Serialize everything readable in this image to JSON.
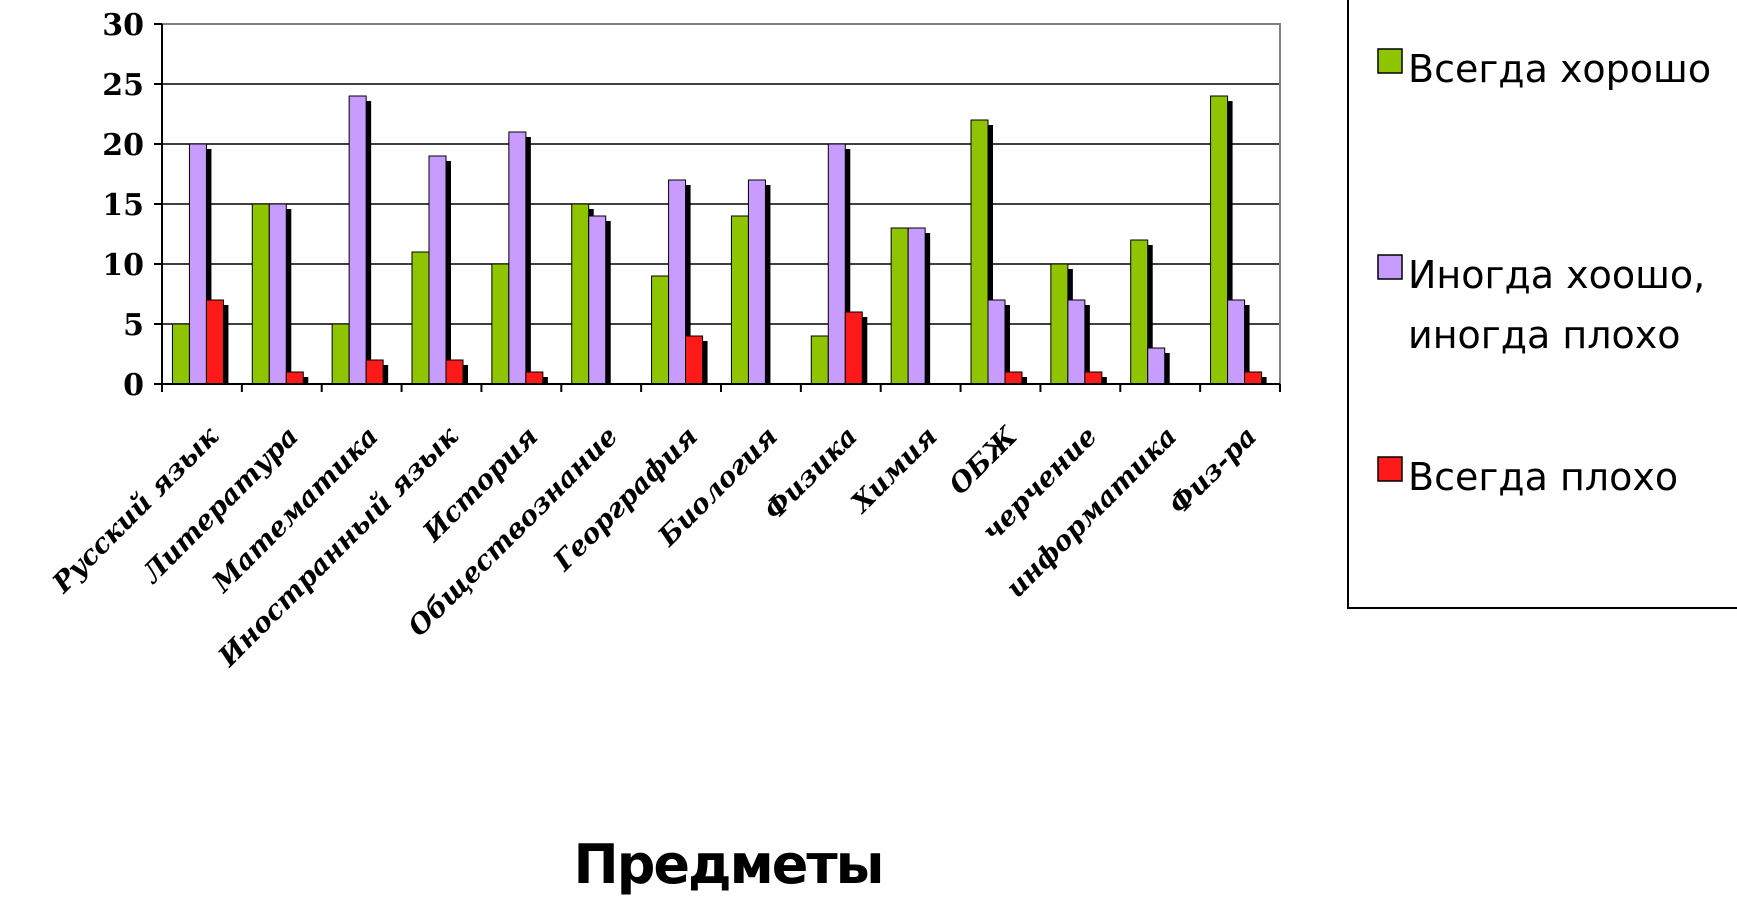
{
  "chart_data": {
    "type": "bar",
    "title": "",
    "xlabel": "Предметы",
    "ylabel": "",
    "ylim": [
      0,
      30
    ],
    "yticks": [
      0,
      5,
      10,
      15,
      20,
      25,
      30
    ],
    "grid": true,
    "legend_position": "right",
    "categories": [
      "Русский язык",
      "Литература",
      "Математика",
      "Иностранный язык",
      "История",
      "Обществознание",
      "Георграфия",
      "Биология",
      "Физика",
      "Химия",
      "ОБЖ",
      "черчение",
      "информатика",
      "Физ-ра"
    ],
    "series": [
      {
        "name": "Всегда хорошо",
        "color": "#8fc400",
        "values": [
          5,
          15,
          5,
          11,
          10,
          15,
          9,
          14,
          4,
          13,
          22,
          10,
          12,
          24
        ]
      },
      {
        "name": "Иногда хоошо, иногда плохо",
        "legend_lines": [
          "Иногда хоошо,",
          "иногда плохо"
        ],
        "color": "#c89bff",
        "values": [
          20,
          15,
          24,
          19,
          21,
          14,
          17,
          17,
          20,
          13,
          7,
          7,
          3,
          7
        ]
      },
      {
        "name": "Всегда плохо",
        "color": "#ff1a1a",
        "values": [
          7,
          1,
          2,
          2,
          1,
          0,
          4,
          0,
          6,
          0,
          1,
          1,
          0,
          1
        ]
      }
    ]
  }
}
